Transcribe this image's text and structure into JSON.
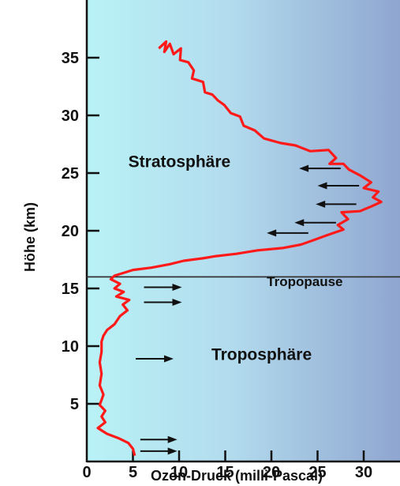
{
  "chart_data": {
    "type": "line",
    "title": "",
    "xlabel": "Ozon-Druck (milli-Pascal)",
    "ylabel": "Höhe (km)",
    "xlim": [
      0,
      33.5
    ],
    "ylim": [
      0,
      37.5
    ],
    "x_ticks": [
      "0",
      "5",
      "10",
      "15",
      "20",
      "25",
      "30"
    ],
    "y_ticks": [
      "5",
      "10",
      "15",
      "20",
      "25",
      "30",
      "35"
    ],
    "series": [
      {
        "color": "#ff1a1a",
        "points": [
          [
            7.8,
            35.8
          ],
          [
            8.6,
            36.4
          ],
          [
            8.4,
            35.5
          ],
          [
            9.0,
            36.2
          ],
          [
            9.4,
            35.3
          ],
          [
            10.2,
            35.8
          ],
          [
            10.1,
            34.8
          ],
          [
            11.0,
            34.6
          ],
          [
            11.6,
            33.9
          ],
          [
            11.4,
            33.2
          ],
          [
            12.6,
            32.9
          ],
          [
            12.8,
            32.0
          ],
          [
            13.6,
            31.8
          ],
          [
            14.2,
            31.3
          ],
          [
            14.9,
            30.9
          ],
          [
            15.6,
            30.2
          ],
          [
            16.6,
            29.9
          ],
          [
            17.0,
            29.1
          ],
          [
            18.2,
            28.7
          ],
          [
            19.2,
            28.0
          ],
          [
            21.0,
            27.6
          ],
          [
            22.6,
            27.4
          ],
          [
            24.2,
            26.9
          ],
          [
            26.2,
            27.0
          ],
          [
            27.0,
            26.3
          ],
          [
            26.3,
            25.8
          ],
          [
            27.8,
            25.8
          ],
          [
            28.4,
            25.3
          ],
          [
            29.6,
            24.8
          ],
          [
            30.8,
            24.2
          ],
          [
            30.0,
            23.7
          ],
          [
            31.6,
            23.4
          ],
          [
            31.0,
            22.9
          ],
          [
            31.9,
            22.5
          ],
          [
            30.8,
            22.1
          ],
          [
            29.6,
            21.7
          ],
          [
            27.6,
            21.6
          ],
          [
            28.3,
            21.0
          ],
          [
            27.2,
            20.5
          ],
          [
            27.8,
            20.1
          ],
          [
            26.0,
            19.6
          ],
          [
            24.6,
            19.2
          ],
          [
            23.2,
            18.8
          ],
          [
            21.2,
            18.5
          ],
          [
            18.5,
            18.3
          ],
          [
            16.2,
            18.0
          ],
          [
            14.0,
            17.8
          ],
          [
            12.5,
            17.6
          ],
          [
            10.5,
            17.4
          ],
          [
            9.0,
            17.1
          ],
          [
            7.0,
            16.8
          ],
          [
            5.0,
            16.6
          ],
          [
            3.8,
            16.3
          ],
          [
            3.0,
            16.1
          ],
          [
            2.6,
            15.8
          ],
          [
            3.6,
            15.4
          ],
          [
            3.0,
            15.0
          ],
          [
            4.0,
            14.7
          ],
          [
            3.2,
            14.3
          ],
          [
            4.6,
            14.0
          ],
          [
            3.9,
            13.6
          ],
          [
            4.4,
            13.1
          ],
          [
            3.6,
            12.6
          ],
          [
            3.0,
            11.9
          ],
          [
            2.2,
            11.4
          ],
          [
            1.8,
            10.9
          ],
          [
            1.6,
            10.4
          ],
          [
            1.6,
            9.5
          ],
          [
            1.4,
            8.6
          ],
          [
            1.6,
            7.6
          ],
          [
            1.4,
            6.6
          ],
          [
            1.8,
            5.8
          ],
          [
            1.4,
            4.9
          ],
          [
            2.0,
            4.4
          ],
          [
            1.6,
            3.9
          ],
          [
            2.0,
            3.4
          ],
          [
            1.2,
            2.9
          ],
          [
            2.2,
            2.4
          ],
          [
            3.5,
            2.0
          ],
          [
            4.5,
            1.6
          ],
          [
            5.0,
            1.1
          ],
          [
            5.2,
            0.5
          ]
        ]
      }
    ],
    "tropopause_altitude": 16.0,
    "annotations": [
      {
        "text": "Stratosphäre",
        "x": 4.5,
        "y": 25.5
      },
      {
        "text": "Tropopause",
        "x": 19.5,
        "y": 15.2
      },
      {
        "text": "Troposphäre",
        "x": 13.5,
        "y": 8.8
      }
    ],
    "arrows": [
      {
        "from": [
          27.5,
          25.4
        ],
        "to": [
          23.0,
          25.4
        ]
      },
      {
        "from": [
          29.5,
          23.9
        ],
        "to": [
          25.0,
          23.9
        ]
      },
      {
        "from": [
          29.2,
          22.3
        ],
        "to": [
          24.8,
          22.3
        ]
      },
      {
        "from": [
          27.0,
          20.7
        ],
        "to": [
          22.5,
          20.7
        ]
      },
      {
        "from": [
          24.0,
          19.8
        ],
        "to": [
          19.5,
          19.8
        ]
      },
      {
        "from": [
          6.2,
          15.1
        ],
        "to": [
          10.3,
          15.1
        ]
      },
      {
        "from": [
          6.2,
          13.8
        ],
        "to": [
          10.3,
          13.8
        ]
      },
      {
        "from": [
          5.3,
          8.9
        ],
        "to": [
          9.4,
          8.9
        ]
      },
      {
        "from": [
          5.8,
          1.9
        ],
        "to": [
          9.8,
          1.9
        ]
      },
      {
        "from": [
          5.8,
          0.9
        ],
        "to": [
          9.8,
          0.9
        ]
      }
    ]
  }
}
